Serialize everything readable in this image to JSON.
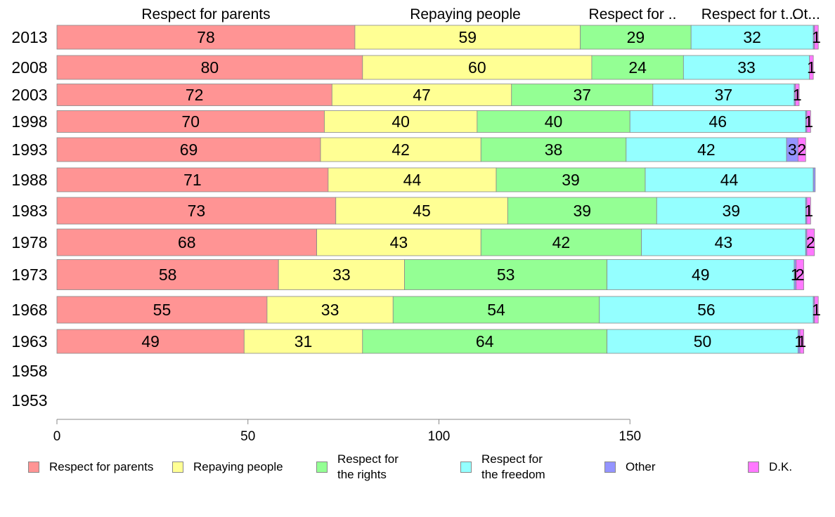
{
  "chart_data": {
    "type": "bar",
    "orientation": "horizontal",
    "stacked": true,
    "categories": [
      "2013",
      "2008",
      "2003",
      "1998",
      "1993",
      "1988",
      "1983",
      "1978",
      "1973",
      "1968",
      "1963",
      "1958",
      "1953"
    ],
    "series": [
      {
        "name": "Respect for parents",
        "color": "#ff9494",
        "values": [
          78,
          80,
          72,
          70,
          69,
          71,
          73,
          68,
          58,
          55,
          49,
          null,
          null
        ]
      },
      {
        "name": "Repaying people",
        "color": "#ffff94",
        "values": [
          59,
          60,
          47,
          40,
          42,
          44,
          45,
          43,
          33,
          33,
          31,
          null,
          null
        ]
      },
      {
        "name": "Respect for the rights",
        "color": "#94ff94",
        "values": [
          29,
          24,
          37,
          40,
          38,
          39,
          39,
          42,
          53,
          54,
          64,
          null,
          null
        ]
      },
      {
        "name": "Respect for the freedom",
        "color": "#94ffff",
        "values": [
          32,
          33,
          37,
          46,
          42,
          44,
          39,
          43,
          49,
          56,
          50,
          null,
          null
        ]
      },
      {
        "name": "Other",
        "color": "#9494ff",
        "values": [
          0.3,
          0,
          0.3,
          0.3,
          3,
          0.5,
          0.3,
          0.3,
          0.5,
          0.3,
          0.5,
          null,
          null
        ]
      },
      {
        "name": "D.K.",
        "color": "#ff78ff",
        "values": [
          1,
          1,
          1,
          1,
          2,
          0,
          1,
          2,
          2,
          1,
          1,
          null,
          null
        ]
      }
    ],
    "data_labels": [
      [
        "78",
        "59",
        "29",
        "32",
        "",
        "1"
      ],
      [
        "80",
        "60",
        "24",
        "33",
        "",
        "1"
      ],
      [
        "72",
        "47",
        "37",
        "37",
        "",
        "1"
      ],
      [
        "70",
        "40",
        "40",
        "46",
        "",
        "1"
      ],
      [
        "69",
        "42",
        "38",
        "42",
        "3",
        "2"
      ],
      [
        "71",
        "44",
        "39",
        "44",
        "",
        ""
      ],
      [
        "73",
        "45",
        "39",
        "39",
        "",
        "1"
      ],
      [
        "68",
        "43",
        "42",
        "43",
        "",
        "2"
      ],
      [
        "58",
        "33",
        "53",
        "49",
        "1",
        "2"
      ],
      [
        "55",
        "33",
        "54",
        "56",
        "",
        "1"
      ],
      [
        "49",
        "31",
        "64",
        "50",
        "1",
        "1"
      ],
      [
        "",
        "",
        "",
        "",
        "",
        ""
      ],
      [
        "",
        "",
        "",
        "",
        "",
        ""
      ]
    ],
    "top_labels": [
      "Respect for parents",
      "Repaying people",
      "Respect for ..",
      "Respect for t...",
      "Ot..."
    ],
    "xlim": [
      0,
      198
    ],
    "xticks": [
      0,
      50,
      100,
      150
    ],
    "grid": false,
    "legend_position": "bottom"
  },
  "legend_labels": {
    "l0": "Respect for parents",
    "l1": "Repaying people",
    "l2a": "Respect for",
    "l2b": "the rights",
    "l3a": "Respect for",
    "l3b": "the freedom",
    "l4": "Other",
    "l5": "D.K."
  },
  "colors": {
    "l0": "#ff9494",
    "l1": "#ffff94",
    "l2": "#94ff94",
    "l3": "#94ffff",
    "l4": "#9494ff",
    "l5": "#ff78ff"
  }
}
